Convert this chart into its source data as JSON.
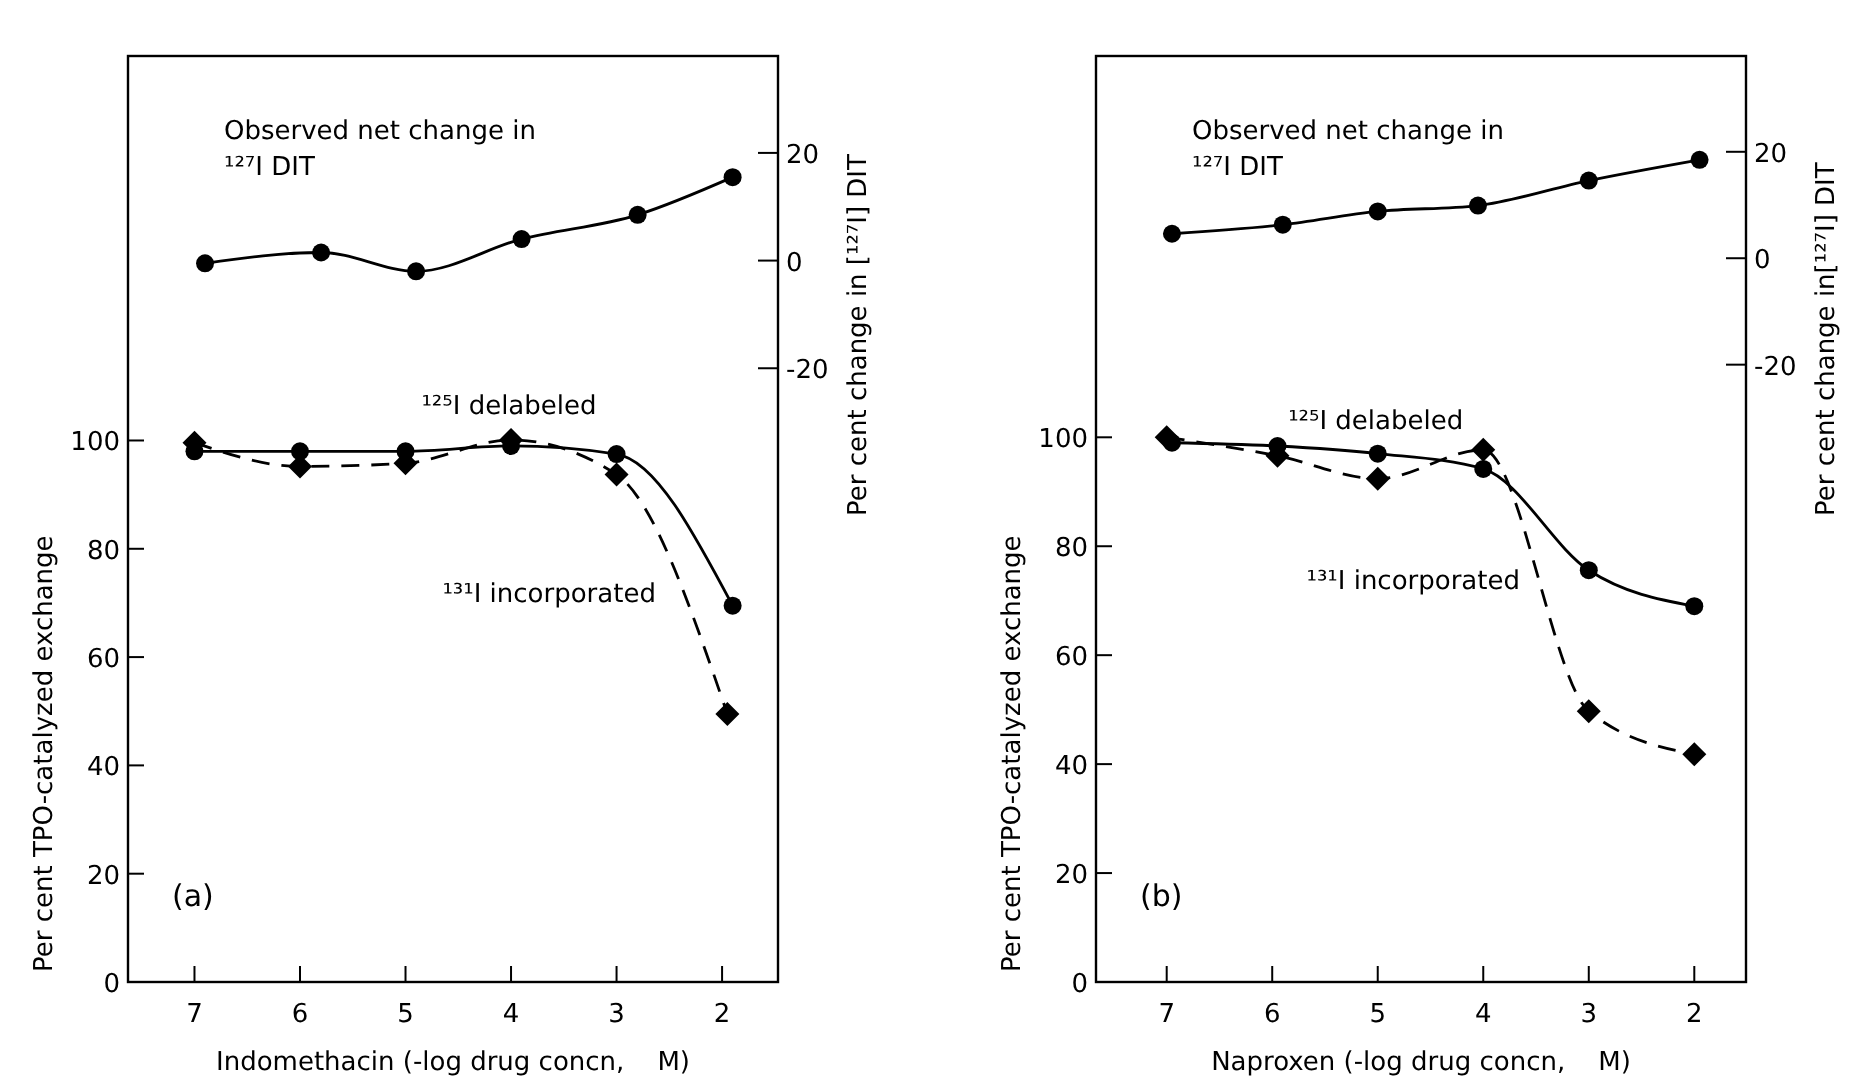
{
  "chart_data": [
    {
      "type": "line",
      "xlabel": "Indomethacin (-log drug concn,    M)",
      "ylabel": "Per cent TPO-catalyzed exchange",
      "y2label": "Per cent change in [¹²⁷I] DIT",
      "xlim": [
        7.63,
        1.47
      ],
      "xticks": [
        7,
        6,
        5,
        4,
        3,
        2
      ],
      "ylim": [
        0,
        171
      ],
      "yticks": [
        0,
        20,
        40,
        60,
        80,
        100
      ],
      "y2lim": [
        -134,
        38
      ],
      "y2ticks": [
        20,
        0,
        -20
      ],
      "grid": false,
      "legend": false,
      "annotations": [
        "(a)"
      ],
      "series": [
        {
          "name": "Observed net change in ¹²⁷I DIT",
          "axis": "y2",
          "color": "#000000",
          "marker": "circle",
          "line_style": "solid",
          "x": [
            6.9,
            5.8,
            4.9,
            3.9,
            2.8,
            1.9
          ],
          "values": [
            -0.5,
            1.5,
            -2,
            4,
            8.5,
            15.5
          ]
        },
        {
          "name": "¹²⁵I delabeled",
          "color": "#000000",
          "marker": "circle",
          "line_style": "solid",
          "x": [
            7,
            6,
            5,
            4,
            3,
            1.9
          ],
          "values": [
            98,
            98,
            98,
            99,
            97.5,
            69.5
          ]
        },
        {
          "name": "¹³¹I incorporated",
          "color": "#000000",
          "marker": "diamond",
          "line_style": "dashed",
          "x": [
            7,
            6,
            5,
            4,
            3,
            1.95
          ],
          "values": [
            99.6,
            95.2,
            95.8,
            100.1,
            93.7,
            49.5
          ]
        }
      ]
    },
    {
      "type": "line",
      "xlabel": "Naproxen (-log drug concn,    M)",
      "ylabel": "Per cent TPO-catalyzed exchange",
      "y2label": "Per cent change in[¹²⁷I] DIT",
      "xlim": [
        7.67,
        1.51
      ],
      "xticks": [
        7,
        6,
        5,
        4,
        3,
        2
      ],
      "ylim": [
        0,
        170
      ],
      "yticks": [
        0,
        20,
        40,
        60,
        80,
        100
      ],
      "y2lim": [
        -136,
        38
      ],
      "y2ticks": [
        20,
        0,
        -20
      ],
      "grid": false,
      "legend": false,
      "annotations": [
        "(b)"
      ],
      "series": [
        {
          "name": "Observed net change in ¹²⁷I DIT",
          "axis": "y2",
          "color": "#000000",
          "marker": "circle",
          "line_style": "solid",
          "x": [
            6.95,
            5.9,
            5,
            4.05,
            3,
            1.95
          ],
          "values": [
            4.6,
            6.3,
            8.8,
            9.9,
            14.6,
            18.5
          ]
        },
        {
          "name": "¹²⁵I delabeled",
          "color": "#000000",
          "marker": "circle",
          "line_style": "solid",
          "x": [
            6.95,
            5.95,
            5,
            4,
            3,
            2
          ],
          "values": [
            99,
            98.4,
            97,
            94.2,
            75.6,
            69
          ]
        },
        {
          "name": "¹³¹I incorporated",
          "color": "#000000",
          "marker": "diamond",
          "line_style": "dashed",
          "x": [
            7,
            5.95,
            5,
            4,
            3,
            2
          ],
          "values": [
            100,
            96.6,
            92.4,
            97.7,
            49.7,
            41.8
          ]
        }
      ]
    }
  ]
}
